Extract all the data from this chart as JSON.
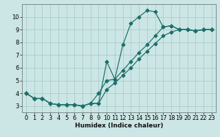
{
  "title": "",
  "xlabel": "Humidex (Indice chaleur)",
  "ylabel": "",
  "xlim": [
    -0.5,
    23.5
  ],
  "ylim": [
    2.5,
    11.0
  ],
  "yticks": [
    3,
    4,
    5,
    6,
    7,
    8,
    9,
    10
  ],
  "xticks": [
    0,
    1,
    2,
    3,
    4,
    5,
    6,
    7,
    8,
    9,
    10,
    11,
    12,
    13,
    14,
    15,
    16,
    17,
    18,
    19,
    20,
    21,
    22,
    23
  ],
  "bg_color": "#cce5e5",
  "grid_color": "#aacccc",
  "line_color": "#1a7068",
  "line1_x": [
    0,
    1,
    2,
    3,
    4,
    5,
    6,
    7,
    8,
    9,
    10,
    11,
    12,
    13,
    14,
    15,
    16,
    17,
    18,
    19,
    20,
    21,
    22,
    23
  ],
  "line1_y": [
    4.0,
    3.6,
    3.6,
    3.2,
    3.1,
    3.1,
    3.1,
    3.0,
    3.2,
    3.2,
    6.5,
    5.1,
    7.8,
    9.5,
    10.0,
    10.5,
    10.4,
    9.2,
    9.3,
    9.0,
    9.0,
    8.9,
    9.0,
    9.0
  ],
  "line2_x": [
    0,
    1,
    2,
    3,
    4,
    5,
    6,
    7,
    8,
    9,
    10,
    11,
    12,
    13,
    14,
    15,
    16,
    17,
    18,
    19,
    20,
    21,
    22,
    23
  ],
  "line2_y": [
    4.0,
    3.6,
    3.6,
    3.2,
    3.1,
    3.1,
    3.1,
    3.0,
    3.2,
    4.0,
    5.0,
    5.1,
    5.8,
    6.5,
    7.2,
    7.8,
    8.5,
    9.2,
    9.3,
    9.0,
    9.0,
    8.9,
    9.0,
    9.0
  ],
  "line3_x": [
    0,
    1,
    2,
    3,
    4,
    5,
    6,
    7,
    8,
    9,
    10,
    11,
    12,
    13,
    14,
    15,
    16,
    17,
    18,
    19,
    20,
    21,
    22,
    23
  ],
  "line3_y": [
    4.0,
    3.6,
    3.6,
    3.2,
    3.1,
    3.1,
    3.1,
    3.0,
    3.2,
    3.2,
    4.3,
    4.8,
    5.4,
    6.0,
    6.7,
    7.3,
    7.9,
    8.5,
    8.8,
    9.0,
    9.0,
    8.9,
    9.0,
    9.0
  ],
  "marker": "D",
  "markersize": 2.5,
  "linewidth": 0.9,
  "tick_fontsize": 6.0,
  "xlabel_fontsize": 6.5
}
